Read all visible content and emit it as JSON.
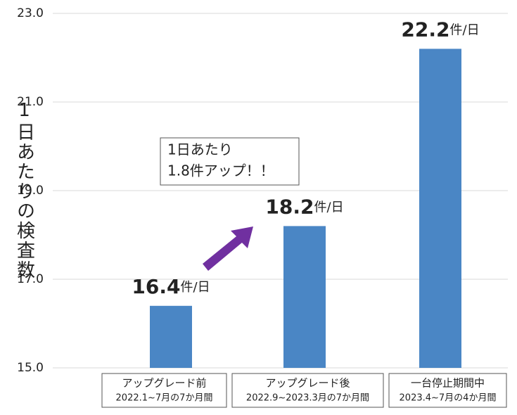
{
  "chart_data": {
    "type": "bar",
    "y_axis_label": "1日あたりの検査数",
    "categories": [
      "アップグレード前",
      "アップグレード後",
      "一台停止期間中"
    ],
    "category_periods": [
      "2022.1~7月の7か月間",
      "2022.9~2023.3月の7か月間",
      "2023.4~7月の4か月間"
    ],
    "values": [
      16.4,
      18.2,
      22.2
    ],
    "value_unit": "件/日",
    "color": "#4a86c5",
    "ylim": [
      15,
      23
    ],
    "yticks": [
      {
        "value": 15,
        "label": "15.0"
      },
      {
        "value": 17,
        "label": "17.0"
      },
      {
        "value": 19,
        "label": "19.0"
      },
      {
        "value": 21,
        "label": "21.0"
      },
      {
        "value": 23,
        "label": "23.0"
      }
    ],
    "grid": true,
    "annotation": [
      "1日あたり",
      "1.8件アップ！！"
    ]
  }
}
